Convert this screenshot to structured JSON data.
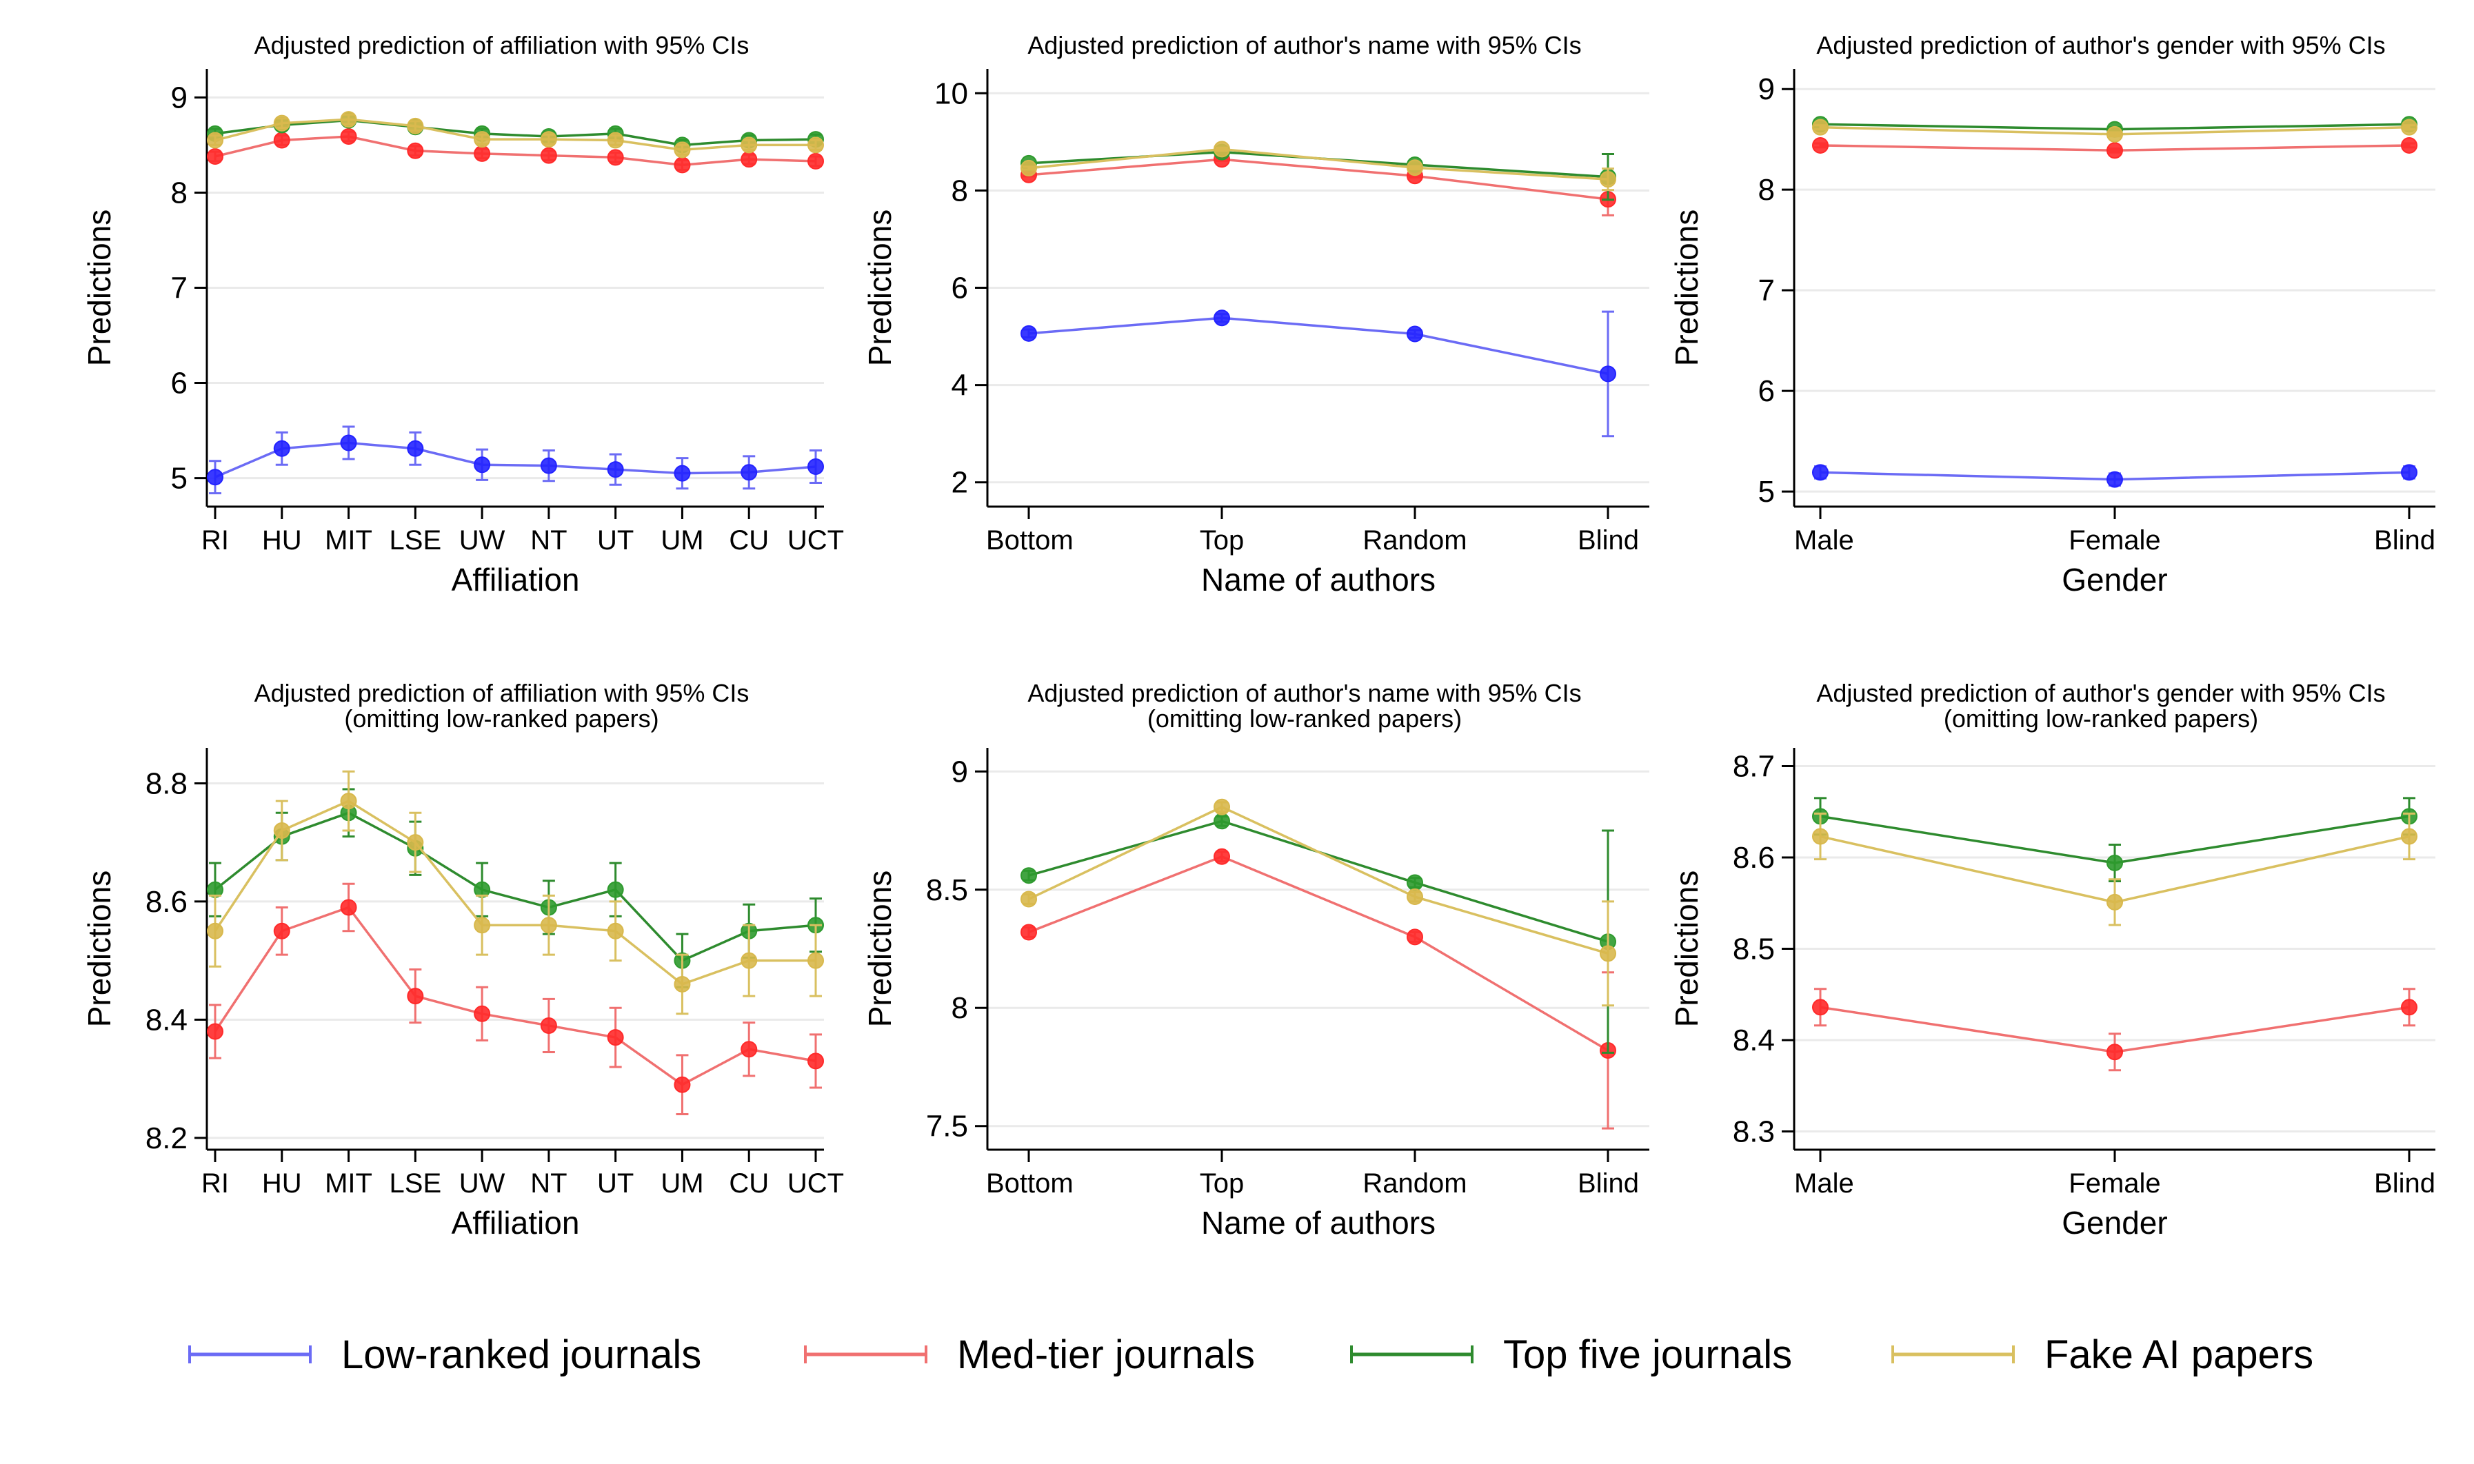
{
  "figure": {
    "type": "chart-grid",
    "rows": 2,
    "cols": 3
  },
  "legend": {
    "items": [
      {
        "key": "low",
        "label": "Low-ranked journals",
        "color": "#6b6bf5"
      },
      {
        "key": "med",
        "label": "Med-tier journals",
        "color": "#f07070"
      },
      {
        "key": "top",
        "label": "Top five journals",
        "color": "#2e8b2e"
      },
      {
        "key": "fake",
        "label": "Fake AI papers",
        "color": "#d9c060"
      }
    ]
  },
  "marker_colors": {
    "low": "#2323ff",
    "med": "#ff2a2a",
    "top": "#2e9a2e",
    "fake": "#d8b84c"
  },
  "chart_data": [
    {
      "type": "line",
      "title": [
        "Adjusted prediction of affiliation with 95% CIs"
      ],
      "xlabel": "Affiliation",
      "ylabel": "Predictions",
      "categories": [
        "RI",
        "HU",
        "MIT",
        "LSE",
        "UW",
        "NT",
        "UT",
        "UM",
        "CU",
        "UCT"
      ],
      "ylim": [
        4.7,
        9.3
      ],
      "yticks": [
        5,
        6,
        7,
        8,
        9
      ],
      "ytick_labels": [
        "5",
        "6",
        "7",
        "8",
        "9"
      ],
      "grid": true,
      "series": [
        {
          "key": "low",
          "name": "Low-ranked journals",
          "values": [
            5.01,
            5.31,
            5.37,
            5.31,
            5.14,
            5.13,
            5.09,
            5.05,
            5.06,
            5.12
          ],
          "ci": [
            0.17,
            0.17,
            0.17,
            0.17,
            0.16,
            0.16,
            0.16,
            0.16,
            0.17,
            0.17
          ]
        },
        {
          "key": "med",
          "name": "Med-tier journals",
          "values": [
            8.38,
            8.55,
            8.59,
            8.44,
            8.41,
            8.39,
            8.37,
            8.29,
            8.35,
            8.33
          ],
          "ci": [
            0.05,
            0.05,
            0.05,
            0.05,
            0.05,
            0.05,
            0.05,
            0.05,
            0.05,
            0.05
          ]
        },
        {
          "key": "top",
          "name": "Top five journals",
          "values": [
            8.62,
            8.71,
            8.76,
            8.69,
            8.62,
            8.59,
            8.62,
            8.5,
            8.55,
            8.56
          ],
          "ci": [
            0.05,
            0.05,
            0.05,
            0.05,
            0.05,
            0.05,
            0.05,
            0.05,
            0.05,
            0.05
          ]
        },
        {
          "key": "fake",
          "name": "Fake AI papers",
          "values": [
            8.55,
            8.73,
            8.77,
            8.7,
            8.56,
            8.56,
            8.55,
            8.45,
            8.5,
            8.5
          ],
          "ci": [
            0.05,
            0.05,
            0.05,
            0.05,
            0.05,
            0.05,
            0.05,
            0.05,
            0.05,
            0.05
          ]
        }
      ]
    },
    {
      "type": "line",
      "title": [
        "Adjusted prediction of author's name with 95% CIs"
      ],
      "xlabel": "Name of authors",
      "ylabel": "Predictions",
      "categories": [
        "Bottom",
        "Top",
        "Random",
        "Blind"
      ],
      "ylim": [
        1.5,
        10.5
      ],
      "yticks": [
        2,
        4,
        6,
        8,
        10
      ],
      "ytick_labels": [
        "2",
        "4",
        "6",
        "8",
        "10"
      ],
      "grid": true,
      "series": [
        {
          "key": "low",
          "name": "Low-ranked journals",
          "values": [
            5.06,
            5.38,
            5.05,
            4.23
          ],
          "ci": [
            0.08,
            0.08,
            0.08,
            1.28
          ]
        },
        {
          "key": "med",
          "name": "Med-tier journals",
          "values": [
            8.32,
            8.64,
            8.3,
            7.82
          ],
          "ci": [
            0.03,
            0.03,
            0.03,
            0.33
          ]
        },
        {
          "key": "top",
          "name": "Top five journals",
          "values": [
            8.56,
            8.79,
            8.53,
            8.28
          ],
          "ci": [
            0.03,
            0.03,
            0.03,
            0.47
          ]
        },
        {
          "key": "fake",
          "name": "Fake AI papers",
          "values": [
            8.46,
            8.85,
            8.47,
            8.23
          ],
          "ci": [
            0.03,
            0.03,
            0.03,
            0.22
          ]
        }
      ]
    },
    {
      "type": "line",
      "title": [
        "Adjusted prediction of author's gender with 95% CIs"
      ],
      "xlabel": "Gender",
      "ylabel": "Predictions",
      "categories": [
        "Male",
        "Female",
        "Blind"
      ],
      "ylim": [
        4.85,
        9.2
      ],
      "yticks": [
        5,
        6,
        7,
        8,
        9
      ],
      "ytick_labels": [
        "5",
        "6",
        "7",
        "8",
        "9"
      ],
      "grid": true,
      "series": [
        {
          "key": "low",
          "name": "Low-ranked journals",
          "values": [
            5.19,
            5.12,
            5.19
          ],
          "ci": [
            0.06,
            0.06,
            0.06
          ]
        },
        {
          "key": "med",
          "name": "Med-tier journals",
          "values": [
            8.44,
            8.39,
            8.44
          ],
          "ci": [
            0.02,
            0.02,
            0.02
          ]
        },
        {
          "key": "top",
          "name": "Top five journals",
          "values": [
            8.65,
            8.6,
            8.65
          ],
          "ci": [
            0.02,
            0.02,
            0.02
          ]
        },
        {
          "key": "fake",
          "name": "Fake AI papers",
          "values": [
            8.62,
            8.55,
            8.62
          ],
          "ci": [
            0.02,
            0.02,
            0.02
          ]
        }
      ]
    },
    {
      "type": "line",
      "title": [
        "Adjusted prediction of affiliation with 95% CIs",
        "(omitting low-ranked papers)"
      ],
      "xlabel": "Affiliation",
      "ylabel": "Predictions",
      "categories": [
        "RI",
        "HU",
        "MIT",
        "LSE",
        "UW",
        "NT",
        "UT",
        "UM",
        "CU",
        "UCT"
      ],
      "ylim": [
        8.18,
        8.86
      ],
      "yticks": [
        8.2,
        8.4,
        8.6,
        8.8
      ],
      "ytick_labels": [
        "8.2",
        "8.4",
        "8.6",
        "8.8"
      ],
      "grid": true,
      "series": [
        {
          "key": "med",
          "name": "Med-tier journals",
          "values": [
            8.38,
            8.55,
            8.59,
            8.44,
            8.41,
            8.39,
            8.37,
            8.29,
            8.35,
            8.33
          ],
          "ci": [
            0.045,
            0.04,
            0.04,
            0.045,
            0.045,
            0.045,
            0.05,
            0.05,
            0.045,
            0.045
          ]
        },
        {
          "key": "top",
          "name": "Top five journals",
          "values": [
            8.62,
            8.71,
            8.75,
            8.69,
            8.62,
            8.59,
            8.62,
            8.5,
            8.55,
            8.56
          ],
          "ci": [
            0.045,
            0.04,
            0.04,
            0.045,
            0.045,
            0.045,
            0.045,
            0.045,
            0.045,
            0.045
          ]
        },
        {
          "key": "fake",
          "name": "Fake AI papers",
          "values": [
            8.55,
            8.72,
            8.77,
            8.7,
            8.56,
            8.56,
            8.55,
            8.46,
            8.5,
            8.5
          ],
          "ci": [
            0.06,
            0.05,
            0.05,
            0.05,
            0.05,
            0.05,
            0.05,
            0.05,
            0.06,
            0.06
          ]
        }
      ]
    },
    {
      "type": "line",
      "title": [
        "Adjusted prediction of author's name with 95% CIs",
        "(omitting low-ranked papers)"
      ],
      "xlabel": "Name of authors",
      "ylabel": "Predictions",
      "categories": [
        "Bottom",
        "Top",
        "Random",
        "Blind"
      ],
      "ylim": [
        7.4,
        9.1
      ],
      "yticks": [
        7.5,
        8,
        8.5,
        9
      ],
      "ytick_labels": [
        "7.5",
        "8",
        "8.5",
        "9"
      ],
      "grid": true,
      "series": [
        {
          "key": "med",
          "name": "Med-tier journals",
          "values": [
            8.32,
            8.64,
            8.3,
            7.82
          ],
          "ci": [
            0.02,
            0.02,
            0.02,
            0.33
          ]
        },
        {
          "key": "top",
          "name": "Top five journals",
          "values": [
            8.56,
            8.79,
            8.53,
            8.28
          ],
          "ci": [
            0.02,
            0.02,
            0.02,
            0.47
          ]
        },
        {
          "key": "fake",
          "name": "Fake AI papers",
          "values": [
            8.46,
            8.85,
            8.47,
            8.23
          ],
          "ci": [
            0.02,
            0.02,
            0.02,
            0.22
          ]
        }
      ]
    },
    {
      "type": "line",
      "title": [
        "Adjusted prediction of author's gender with 95% CIs",
        "(omitting low-ranked papers)"
      ],
      "xlabel": "Gender",
      "ylabel": "Predictions",
      "categories": [
        "Male",
        "Female",
        "Blind"
      ],
      "ylim": [
        8.28,
        8.72
      ],
      "yticks": [
        8.3,
        8.4,
        8.5,
        8.6,
        8.7
      ],
      "ytick_labels": [
        "8.3",
        "8.4",
        "8.5",
        "8.6",
        "8.7"
      ],
      "grid": true,
      "series": [
        {
          "key": "med",
          "name": "Med-tier journals",
          "values": [
            8.436,
            8.387,
            8.436
          ],
          "ci": [
            0.02,
            0.02,
            0.02
          ]
        },
        {
          "key": "top",
          "name": "Top five journals",
          "values": [
            8.645,
            8.594,
            8.645
          ],
          "ci": [
            0.02,
            0.02,
            0.02
          ]
        },
        {
          "key": "fake",
          "name": "Fake AI papers",
          "values": [
            8.623,
            8.551,
            8.623
          ],
          "ci": [
            0.025,
            0.025,
            0.025
          ]
        }
      ]
    }
  ]
}
